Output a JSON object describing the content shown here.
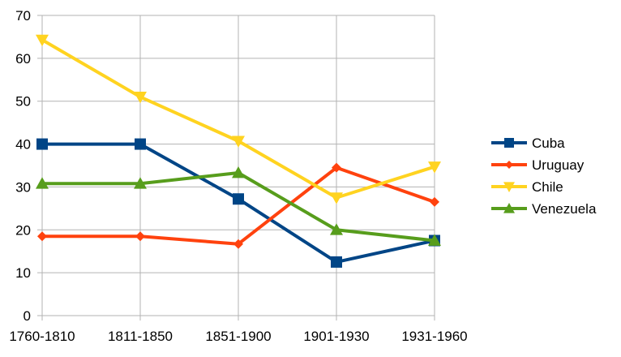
{
  "chart_data": {
    "type": "line",
    "title": "",
    "xlabel": "",
    "ylabel": "",
    "categories": [
      "1760-1810",
      "1811-1850",
      "1851-1900",
      "1901-1930",
      "1931-1960"
    ],
    "ylim": [
      0,
      70
    ],
    "yticks": [
      0,
      10,
      20,
      30,
      40,
      50,
      60,
      70
    ],
    "grid": true,
    "legend_position": "right",
    "series": [
      {
        "name": "Cuba",
        "color": "#004586",
        "marker": "square",
        "values": [
          40,
          40,
          27.2,
          12.5,
          17.5
        ]
      },
      {
        "name": "Uruguay",
        "color": "#ff420e",
        "marker": "diamond",
        "values": [
          18.5,
          18.5,
          16.7,
          34.5,
          26.5
        ]
      },
      {
        "name": "Chile",
        "color": "#ffd320",
        "marker": "triangle-down",
        "values": [
          64.3,
          51,
          40.7,
          27.5,
          34.7
        ]
      },
      {
        "name": "Venezuela",
        "color": "#579d1c",
        "marker": "triangle-up",
        "values": [
          30.8,
          30.8,
          33.3,
          20,
          17.5
        ]
      }
    ]
  }
}
